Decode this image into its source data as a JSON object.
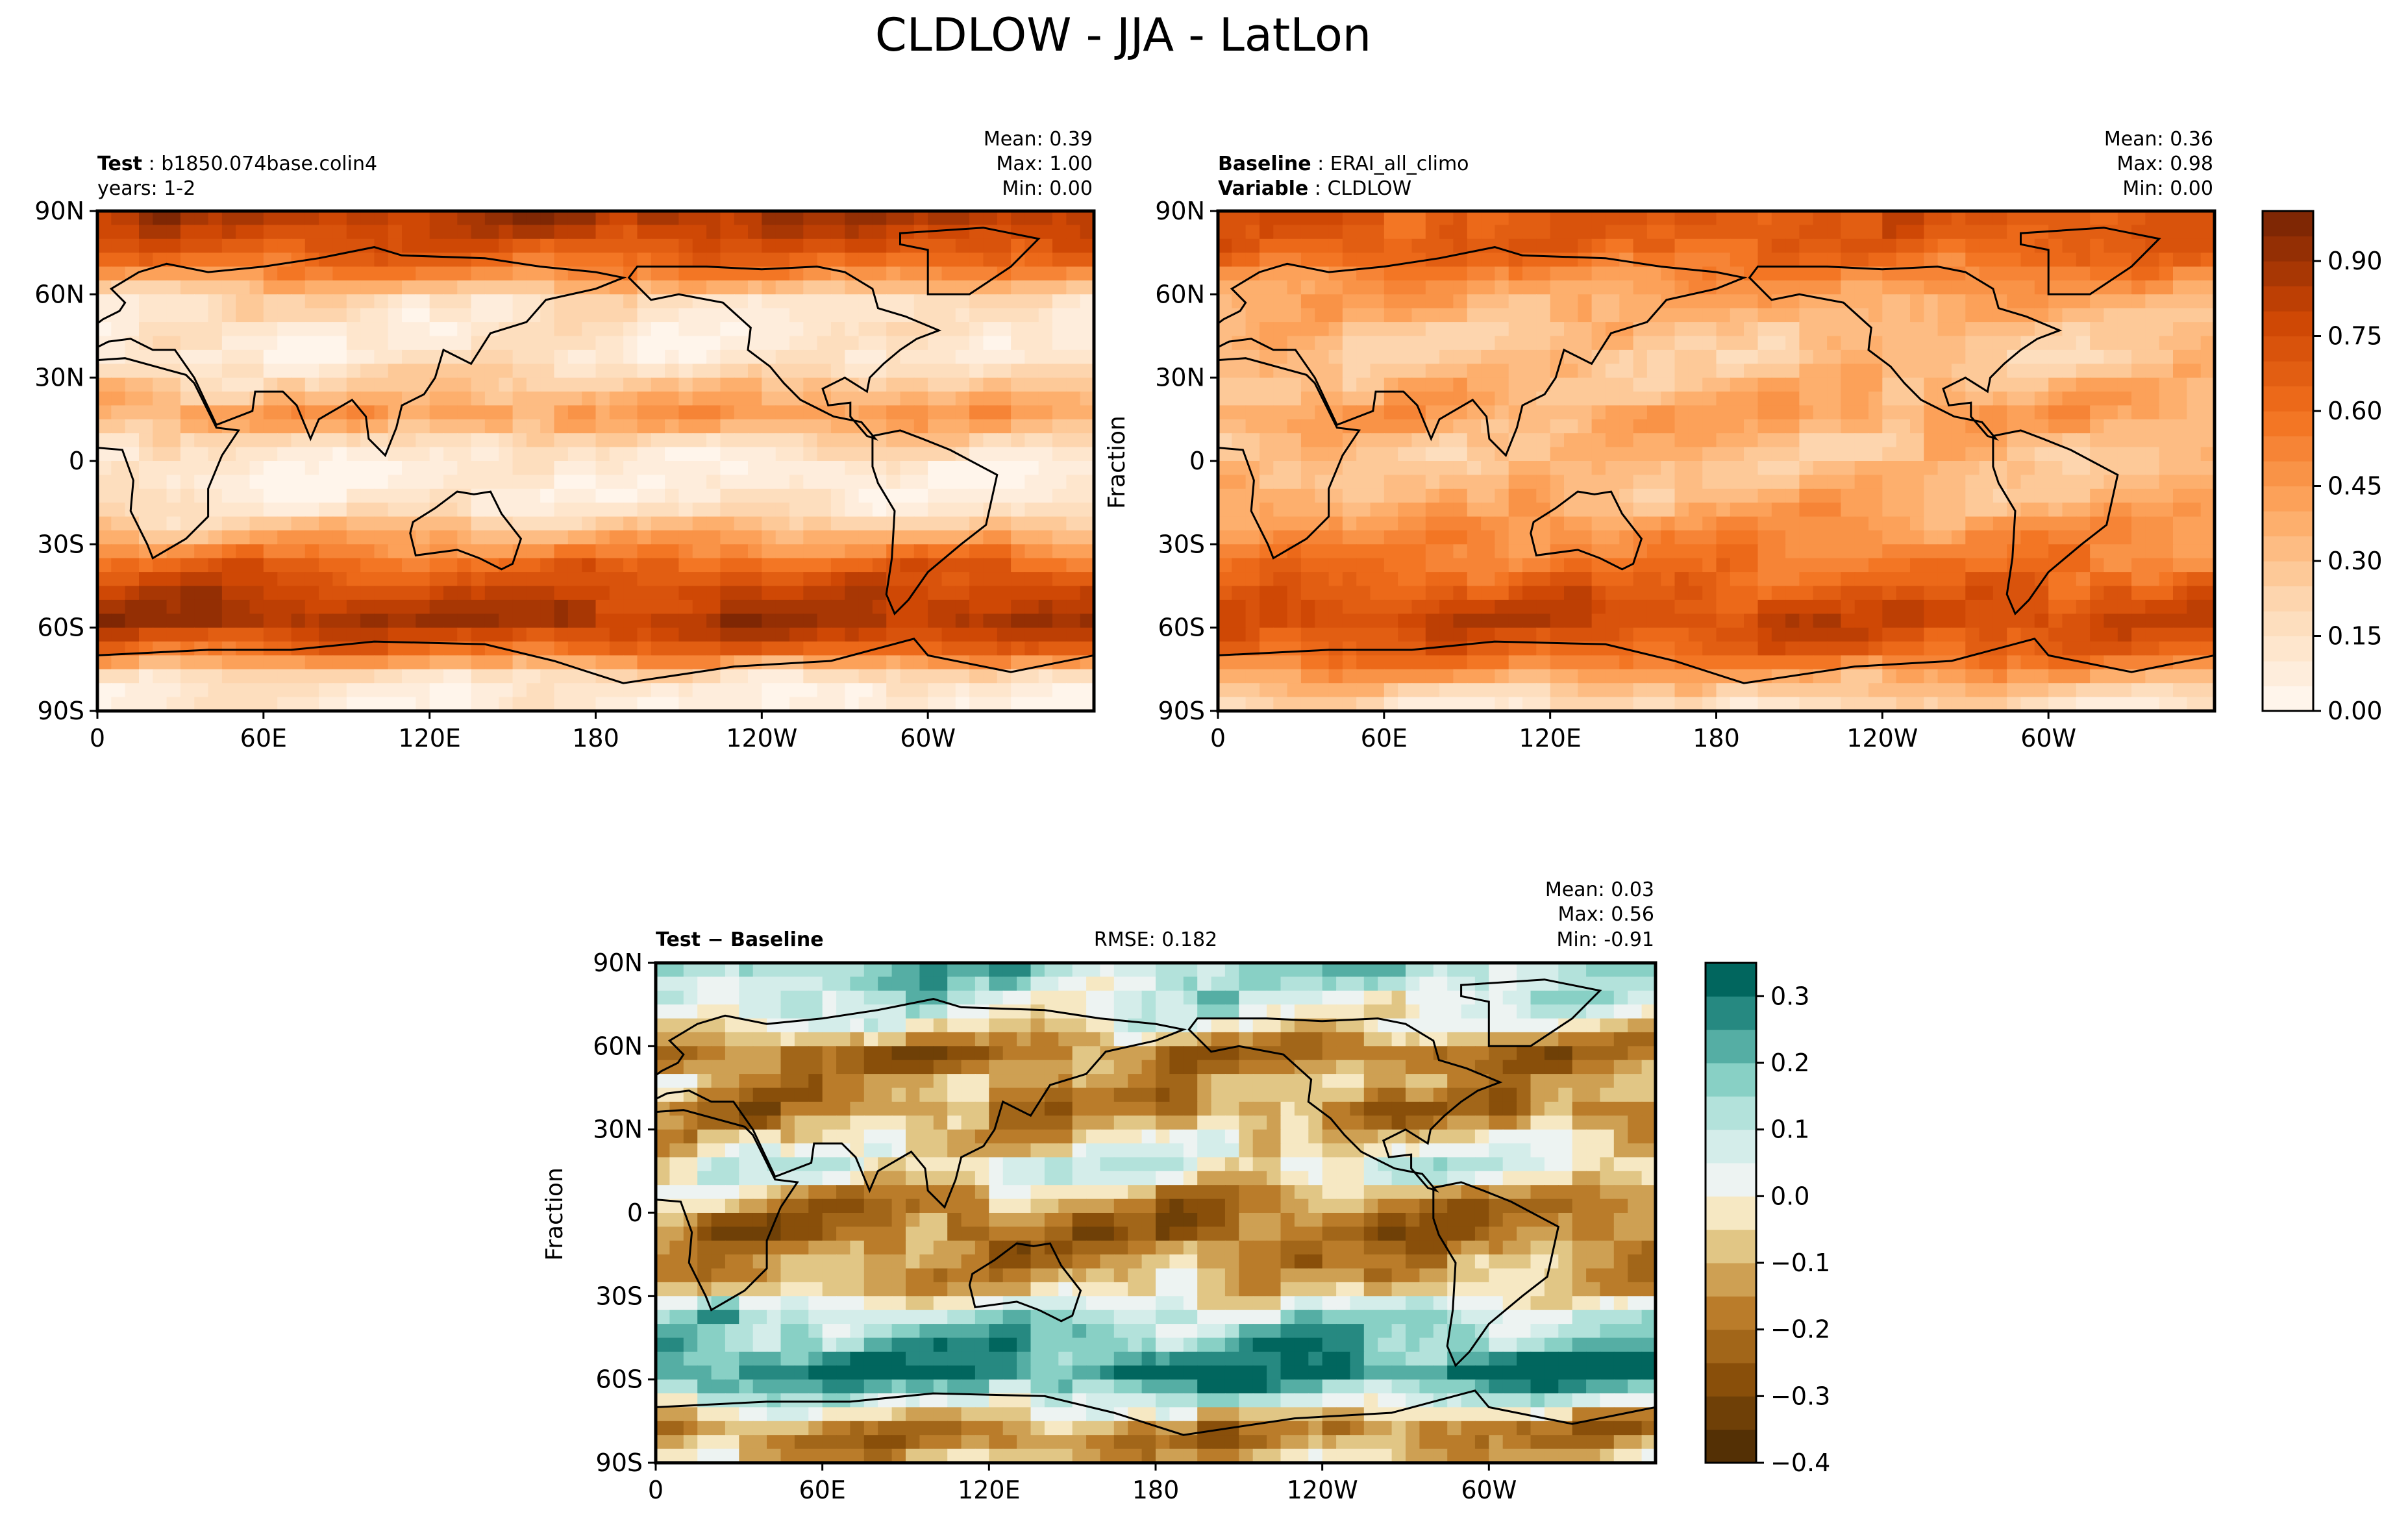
{
  "figure": {
    "title": "CLDLOW - JJA - LatLon"
  },
  "chart_data": [
    {
      "type": "heatmap",
      "kind": "map",
      "header_left": [
        {
          "bold": "Test",
          "text": "b1850.074base.colin4"
        },
        {
          "bold": "",
          "text": "years: 1-2"
        }
      ],
      "stats": {
        "mean": "Mean:  0.39",
        "max": "Max:  1.00",
        "min": "Min:  0.00"
      },
      "ylabel": "",
      "lat_ticks": [
        "90N",
        "60N",
        "30N",
        "0",
        "30S",
        "60S",
        "90S"
      ],
      "lon_ticks": [
        "0",
        "60E",
        "120E",
        "180",
        "120W",
        "60W"
      ],
      "zonal_field": [
        0.88,
        0.75,
        0.55,
        0.18,
        0.12,
        0.1,
        0.28,
        0.45,
        0.15,
        0.06,
        0.1,
        0.35,
        0.65,
        0.8,
        0.9,
        0.6,
        0.08,
        0.05
      ]
    },
    {
      "type": "heatmap",
      "kind": "map",
      "header_left": [
        {
          "bold": "Baseline",
          "text": "ERAI_all_climo"
        },
        {
          "bold": "Variable",
          "text": "CLDLOW"
        }
      ],
      "stats": {
        "mean": "Mean:  0.36",
        "max": "Max:  0.98",
        "min": "Min:  0.00"
      },
      "ylabel": "Fraction",
      "lat_ticks": [
        "90N",
        "60N",
        "30N",
        "0",
        "30S",
        "60S",
        "90S"
      ],
      "lon_ticks": [
        "0",
        "60E",
        "120E",
        "180",
        "120W",
        "60W"
      ],
      "zonal_field": [
        0.7,
        0.68,
        0.55,
        0.4,
        0.32,
        0.28,
        0.35,
        0.42,
        0.3,
        0.3,
        0.38,
        0.48,
        0.58,
        0.7,
        0.78,
        0.65,
        0.35,
        0.12
      ],
      "colorbar": {
        "cmap": "oranges",
        "min": 0.0,
        "max": 1.0,
        "ticks": [
          "0.00",
          "0.15",
          "0.30",
          "0.45",
          "0.60",
          "0.75",
          "0.90"
        ],
        "tick_values": [
          0.0,
          0.15,
          0.3,
          0.45,
          0.6,
          0.75,
          0.9
        ],
        "levels": 20
      }
    },
    {
      "type": "heatmap",
      "kind": "map",
      "header_left": [
        {
          "bold": "Test − Baseline",
          "text": ""
        }
      ],
      "rmse": "RMSE: 0.182",
      "stats": {
        "mean": "Mean:  0.03",
        "max": "Max:  0.56",
        "min": "Min: -0.91"
      },
      "ylabel": "Fraction",
      "lat_ticks": [
        "90N",
        "60N",
        "30N",
        "0",
        "30S",
        "60S",
        "90S"
      ],
      "lon_ticks": [
        "0",
        "60E",
        "120E",
        "180",
        "120W",
        "60W"
      ],
      "zonal_field": [
        0.18,
        0.1,
        0.02,
        -0.2,
        -0.12,
        -0.18,
        -0.05,
        0.05,
        -0.14,
        -0.22,
        -0.16,
        -0.1,
        0.12,
        0.2,
        0.32,
        0.05,
        -0.2,
        -0.05
      ],
      "colorbar": {
        "cmap": "brbg",
        "min": -0.4,
        "max": 0.35,
        "ticks": [
          "0.3",
          "0.2",
          "0.1",
          "0.0",
          "−0.1",
          "−0.2",
          "−0.3",
          "−0.4"
        ],
        "tick_values": [
          0.3,
          0.2,
          0.1,
          0.0,
          -0.1,
          -0.2,
          -0.3,
          -0.4
        ],
        "levels": 15
      }
    }
  ]
}
